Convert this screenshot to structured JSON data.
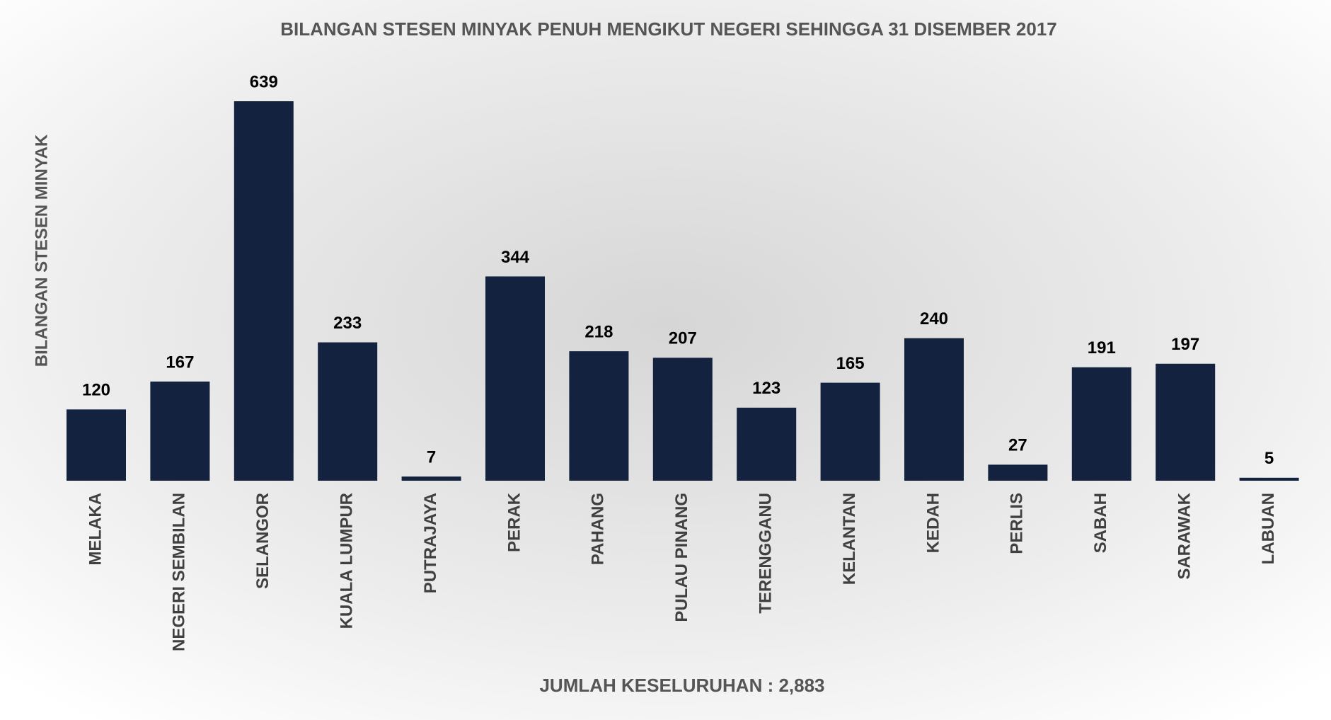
{
  "chart_data": {
    "type": "bar",
    "title": "BILANGAN STESEN MINYAK PENUH MENGIKUT NEGERI SEHINGGA 31 DISEMBER 2017",
    "y_label": "BILANGAN STESEN MINYAK",
    "annotation": "JUMLAH KESELURUHAN : 2,883",
    "categories": [
      "MELAKA",
      "NEGERI SEMBILAN",
      "SELANGOR",
      "KUALA LUMPUR",
      "PUTRAJAYA",
      "PERAK",
      "PAHANG",
      "PULAU PINANG",
      "TERENGGANU",
      "KELANTAN",
      "KEDAH",
      "PERLIS",
      "SABAH",
      "SARAWAK",
      "LABUAN"
    ],
    "values": [
      120,
      167,
      639,
      233,
      7,
      344,
      218,
      207,
      123,
      165,
      240,
      27,
      191,
      197,
      5
    ],
    "color": "#13233f"
  }
}
